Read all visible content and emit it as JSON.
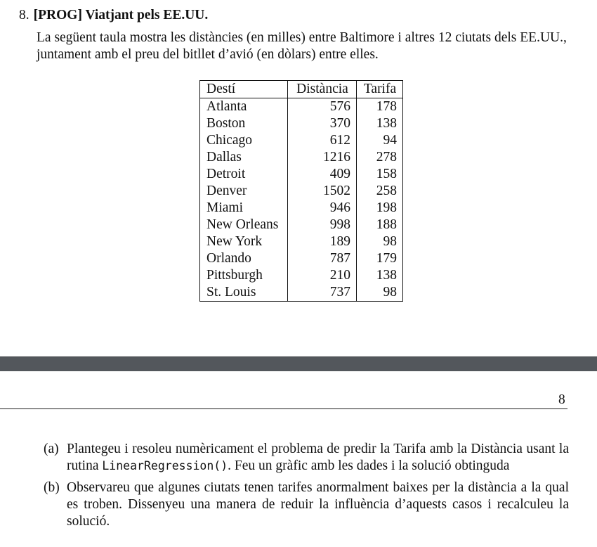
{
  "problem": {
    "number": "8.",
    "title": "[PROG] Viatjant pels EE.UU.",
    "intro": "La següent taula mostra les distàncies (en milles) entre Baltimore i altres 12 ciutats dels EE.UU., juntament amb el preu del bitllet d’avió (en dòlars) entre elles."
  },
  "table": {
    "headers": [
      "Destí",
      "Distància",
      "Tarifa"
    ],
    "rows": [
      [
        "Atlanta",
        "576",
        "178"
      ],
      [
        "Boston",
        "370",
        "138"
      ],
      [
        "Chicago",
        "612",
        "94"
      ],
      [
        "Dallas",
        "1216",
        "278"
      ],
      [
        "Detroit",
        "409",
        "158"
      ],
      [
        "Denver",
        "1502",
        "258"
      ],
      [
        "Miami",
        "946",
        "198"
      ],
      [
        "New Orleans",
        "998",
        "188"
      ],
      [
        "New York",
        "189",
        "98"
      ],
      [
        "Orlando",
        "787",
        "179"
      ],
      [
        "Pittsburgh",
        "210",
        "138"
      ],
      [
        "St. Louis",
        "737",
        "98"
      ]
    ]
  },
  "page_number": "8",
  "subquestions": {
    "a": {
      "marker": "(a)",
      "text_before": "Plantegeu i resoleu numèricament el problema de predir la Tarifa amb la Distància usant la rutina ",
      "code": "LinearRegression()",
      "text_after": ". Feu un gràfic amb les dades i la solució obtinguda"
    },
    "b": {
      "marker": "(b)",
      "text": "Observareu que algunes ciutats tenen tarifes anormalment baixes per la distància a la qual es troben. Dissenyeu una manera de reduir la influència d’aquests casos i recalculeu la solució."
    }
  }
}
